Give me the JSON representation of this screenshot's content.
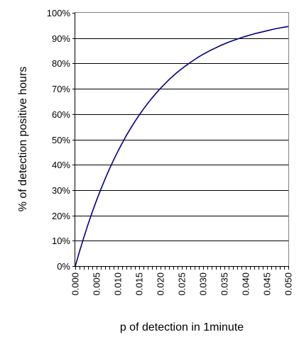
{
  "chart_data": {
    "type": "line",
    "title": "",
    "xlabel": "p of detection in 1minute",
    "ylabel": "% of detection positive hours",
    "xlim": [
      0,
      0.05
    ],
    "ylim": [
      0,
      1
    ],
    "grid": "horizontal",
    "legend": "none",
    "xticks": [
      0,
      0.005,
      0.01,
      0.015,
      0.02,
      0.025,
      0.03,
      0.035,
      0.04,
      0.045,
      0.05
    ],
    "xtick_labels": [
      "0.000",
      "0.005",
      "0.010",
      "0.015",
      "0.020",
      "0.025",
      "0.030",
      "0.035",
      "0.040",
      "0.045",
      "0.050"
    ],
    "yticks": [
      0,
      0.1,
      0.2,
      0.3,
      0.4,
      0.5,
      0.6,
      0.7,
      0.8,
      0.9,
      1.0
    ],
    "ytick_labels": [
      "0%",
      "10%",
      "20%",
      "30%",
      "40%",
      "50%",
      "60%",
      "70%",
      "80%",
      "90%",
      "100%"
    ],
    "minor_xtick_step": 0.001,
    "series": [
      {
        "color": "#000080",
        "x": [
          0,
          0.001,
          0.002,
          0.003,
          0.004,
          0.005,
          0.006,
          0.007,
          0.008,
          0.009,
          0.01,
          0.011,
          0.012,
          0.013,
          0.014,
          0.015,
          0.016,
          0.017,
          0.018,
          0.019,
          0.02,
          0.021,
          0.022,
          0.023,
          0.024,
          0.025,
          0.026,
          0.027,
          0.028,
          0.029,
          0.03,
          0.031,
          0.032,
          0.033,
          0.034,
          0.035,
          0.036,
          0.037,
          0.038,
          0.039,
          0.04,
          0.041,
          0.042,
          0.043,
          0.044,
          0.045,
          0.046,
          0.047,
          0.048,
          0.049,
          0.05
        ],
        "y": [
          0,
          0.058,
          0.113,
          0.165,
          0.214,
          0.26,
          0.303,
          0.344,
          0.383,
          0.419,
          0.453,
          0.485,
          0.516,
          0.544,
          0.571,
          0.596,
          0.62,
          0.642,
          0.663,
          0.683,
          0.702,
          0.719,
          0.736,
          0.751,
          0.766,
          0.779,
          0.792,
          0.804,
          0.815,
          0.826,
          0.836,
          0.845,
          0.854,
          0.862,
          0.87,
          0.877,
          0.884,
          0.89,
          0.896,
          0.902,
          0.907,
          0.912,
          0.917,
          0.921,
          0.925,
          0.929,
          0.933,
          0.937,
          0.94,
          0.943,
          0.946
        ]
      }
    ]
  }
}
